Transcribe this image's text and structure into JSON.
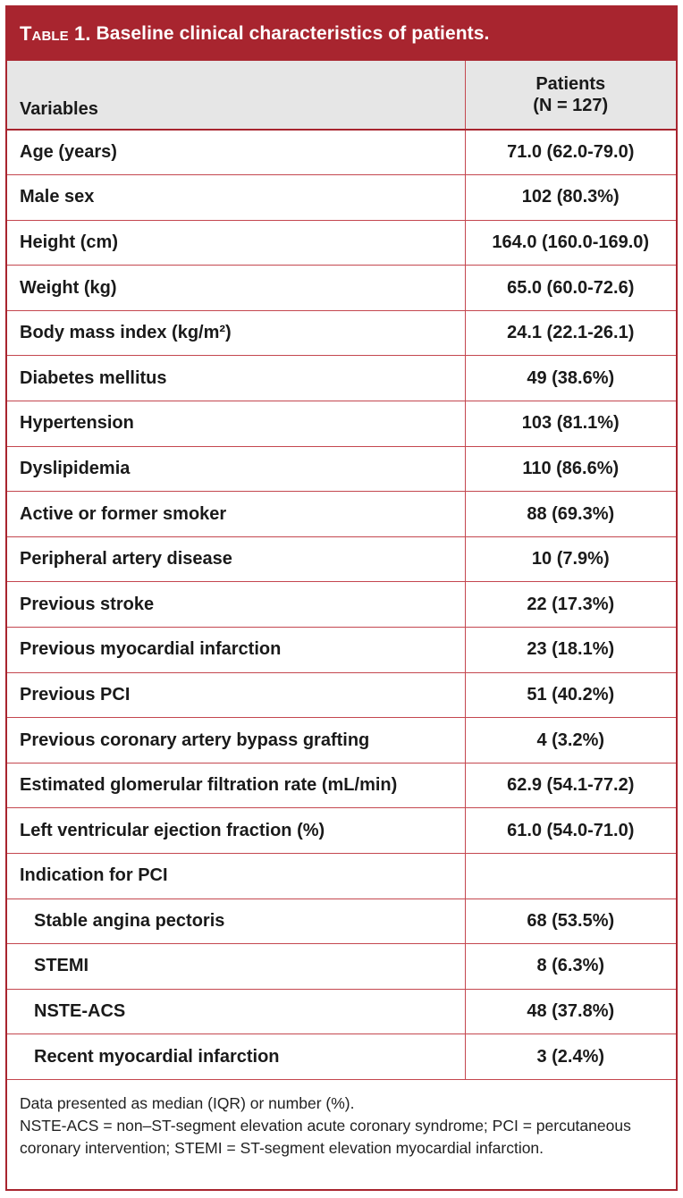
{
  "table": {
    "label": "Table 1.",
    "caption": "Baseline clinical characteristics of patients.",
    "header": {
      "variables": "Variables",
      "patients_line1": "Patients",
      "patients_line2": "(N = 127)"
    },
    "rows": [
      {
        "variable": "Age (years)",
        "value": "71.0 (62.0-79.0)"
      },
      {
        "variable": "Male sex",
        "value": "102 (80.3%)"
      },
      {
        "variable": "Height (cm)",
        "value": "164.0 (160.0-169.0)"
      },
      {
        "variable": "Weight (kg)",
        "value": "65.0 (60.0-72.6)"
      },
      {
        "variable": "Body mass index (kg/m²)",
        "value": "24.1 (22.1-26.1)"
      },
      {
        "variable": "Diabetes mellitus",
        "value": "49 (38.6%)"
      },
      {
        "variable": "Hypertension",
        "value": "103 (81.1%)"
      },
      {
        "variable": "Dyslipidemia",
        "value": "110 (86.6%)"
      },
      {
        "variable": "Active or former smoker",
        "value": "88 (69.3%)"
      },
      {
        "variable": "Peripheral artery disease",
        "value": "10 (7.9%)"
      },
      {
        "variable": "Previous stroke",
        "value": "22 (17.3%)"
      },
      {
        "variable": "Previous myocardial infarction",
        "value": "23 (18.1%)"
      },
      {
        "variable": "Previous PCI",
        "value": "51 (40.2%)"
      },
      {
        "variable": "Previous coronary artery bypass grafting",
        "value": "4 (3.2%)"
      },
      {
        "variable": "Estimated glomerular filtration rate (mL/min)",
        "value": "62.9 (54.1-77.2)"
      },
      {
        "variable": "Left ventricular ejection fraction (%)",
        "value": "61.0 (54.0-71.0)"
      },
      {
        "variable": "Indication for PCI",
        "value": ""
      },
      {
        "variable": "Stable angina pectoris",
        "value": "68 (53.5%)",
        "indent": true
      },
      {
        "variable": "STEMI",
        "value": "8 (6.3%)",
        "indent": true
      },
      {
        "variable": "NSTE-ACS",
        "value": "48 (37.8%)",
        "indent": true
      },
      {
        "variable": "Recent myocardial infarction",
        "value": "3 (2.4%)",
        "indent": true
      }
    ]
  },
  "footnote": {
    "line1": "Data presented as median (IQR) or number (%).",
    "line2": "NSTE-ACS = non–ST-segment elevation acute coronary syndrome; PCI = percutaneous coronary intervention; STEMI = ST-segment elevation myocardial infarction."
  },
  "colors": {
    "accent": "#a8252f",
    "header_bg": "#e6e6e6",
    "rule": "#c4474f"
  }
}
